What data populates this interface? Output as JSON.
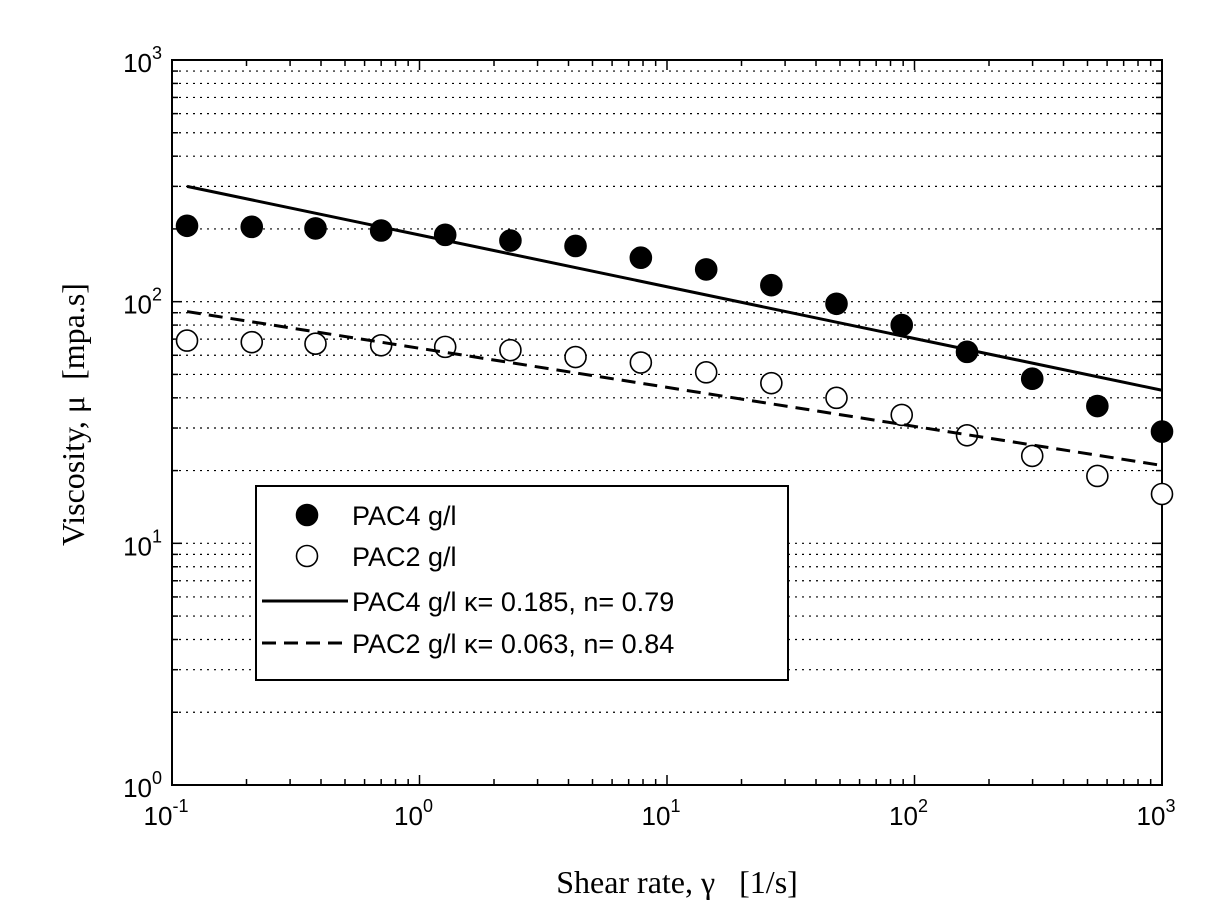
{
  "chart_data": {
    "type": "scatter",
    "scale": {
      "x": "log",
      "y": "log"
    },
    "xlim": [
      0.1,
      1000
    ],
    "ylim": [
      1,
      1000
    ],
    "xlabel": "Shear rate, γ   [1/s]",
    "ylabel": "Viscosity, μ  [mpa.s]",
    "grid": {
      "y_minor_dotted": true,
      "x": false
    },
    "legend_position": "center-left",
    "x_ticks": [
      {
        "base": "10",
        "exp": "-1",
        "value": 0.1
      },
      {
        "base": "10",
        "exp": "0",
        "value": 1
      },
      {
        "base": "10",
        "exp": "1",
        "value": 10
      },
      {
        "base": "10",
        "exp": "2",
        "value": 100
      },
      {
        "base": "10",
        "exp": "3",
        "value": 1000
      }
    ],
    "y_ticks": [
      {
        "base": "10",
        "exp": "0",
        "value": 1
      },
      {
        "base": "10",
        "exp": "1",
        "value": 10
      },
      {
        "base": "10",
        "exp": "2",
        "value": 100
      },
      {
        "base": "10",
        "exp": "3",
        "value": 1000
      }
    ],
    "series": [
      {
        "name": "PAC4 g/l",
        "kind": "markers",
        "marker": "filled-circle",
        "x": [
          0.115,
          0.21,
          0.38,
          0.7,
          1.27,
          2.33,
          4.27,
          7.84,
          14.4,
          26.4,
          48.4,
          88.8,
          163,
          299,
          548,
          1000
        ],
        "y": [
          206,
          204,
          201,
          197,
          189,
          179,
          170,
          152,
          136,
          117,
          98,
          80,
          62,
          48,
          37,
          29
        ]
      },
      {
        "name": "PAC2 g/l",
        "kind": "markers",
        "marker": "open-circle",
        "x": [
          0.115,
          0.21,
          0.38,
          0.7,
          1.27,
          2.33,
          4.27,
          7.84,
          14.4,
          26.4,
          48.4,
          88.8,
          163,
          299,
          548,
          1000
        ],
        "y": [
          69,
          68,
          67,
          66,
          65,
          63,
          59,
          56,
          51,
          46,
          40,
          34,
          28,
          23,
          19,
          16
        ]
      },
      {
        "name": "PAC4 g/l κ= 0.185, n= 0.79",
        "kind": "line",
        "dash": "solid",
        "x": [
          0.115,
          1000
        ],
        "y": [
          300,
          43
        ]
      },
      {
        "name": "PAC2 g/l κ= 0.063, n= 0.84",
        "kind": "line",
        "dash": "dashed",
        "x": [
          0.115,
          1000
        ],
        "y": [
          91,
          21
        ]
      }
    ]
  }
}
